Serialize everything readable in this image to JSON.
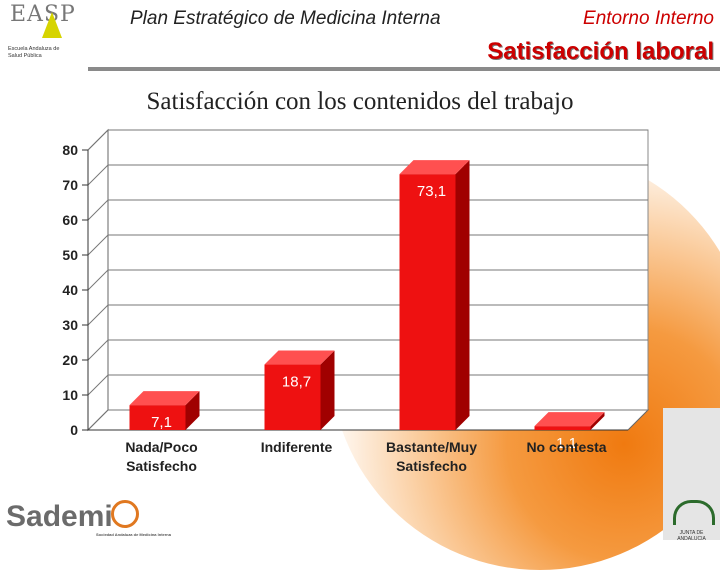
{
  "header": {
    "title": "Plan Estratégico de Medicina Interna",
    "section": "Entorno Interno",
    "subtitle": "Satisfacción laboral",
    "logo_left_text": "EASP",
    "logo_left_sub": "Escuela Andaluza de Salud Pública",
    "logo_bottom_left": "Sademi",
    "logo_bottom_left_ring": "",
    "logo_bottom_left_tag": "Sociedad Andaluza de Medicina Interna",
    "logo_bottom_right_text": "JUNTA DE ANDALUCIA"
  },
  "colors": {
    "bar_front": "#ee1111",
    "bar_side": "#a00000",
    "bar_top": "#ff5050",
    "accent": "#cc0000",
    "glow": "#f07a10"
  },
  "chart_data": {
    "type": "bar",
    "title": "Satisfacción con los contenidos del trabajo",
    "categories": [
      [
        "Nada/Poco",
        "Satisfecho"
      ],
      [
        "Indiferente"
      ],
      [
        "Bastante/Muy",
        "Satisfecho"
      ],
      [
        "No contesta"
      ]
    ],
    "values": [
      7.1,
      18.7,
      73.1,
      1.1
    ],
    "data_labels": [
      "7,1",
      "18,7",
      "73,1",
      "1,1"
    ],
    "yticks": [
      "0",
      "10",
      "20",
      "30",
      "40",
      "50",
      "60",
      "70",
      "80"
    ],
    "ylim": [
      0,
      80
    ],
    "grid": true,
    "legend": false,
    "xlabel": "",
    "ylabel": ""
  }
}
